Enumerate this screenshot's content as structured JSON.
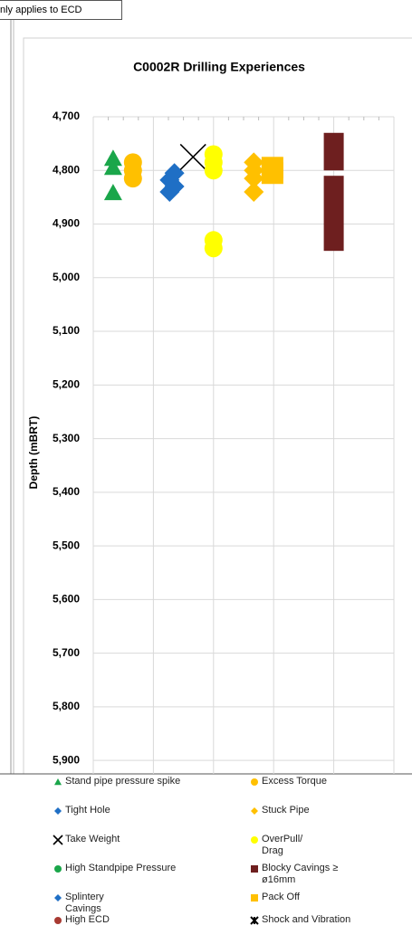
{
  "note": "nly applies to ECD",
  "chart_data": {
    "type": "scatter",
    "title": "C0002R Drilling Experiences",
    "y_label": "Depth (mBRT)",
    "ylim": [
      4700,
      5925
    ],
    "y_inverted": true,
    "yticks": [
      {
        "value": 4700,
        "label": "4,700"
      },
      {
        "value": 4800,
        "label": "4,800"
      },
      {
        "value": 4900,
        "label": "4,900"
      },
      {
        "value": 5000,
        "label": "5,000"
      },
      {
        "value": 5100,
        "label": "5,100"
      },
      {
        "value": 5200,
        "label": "5,200"
      },
      {
        "value": 5300,
        "label": "5,300"
      },
      {
        "value": 5400,
        "label": "5,400"
      },
      {
        "value": 5500,
        "label": "5,500"
      },
      {
        "value": 5600,
        "label": "5,600"
      },
      {
        "value": 5700,
        "label": "5,700"
      },
      {
        "value": 5800,
        "label": "5,800"
      },
      {
        "value": 5900,
        "label": "5,900"
      }
    ],
    "xlim": [
      0,
      5
    ],
    "xticks": [
      0,
      1,
      2,
      3,
      4,
      5
    ],
    "grid": true,
    "legend": "bottom",
    "series": [
      {
        "name": "Stand pipe pressure spike",
        "marker": "triangle",
        "color": "#1aa64a",
        "x": [
          0.33,
          0.33,
          0.33
        ],
        "y": [
          4778,
          4795,
          4842
        ]
      },
      {
        "name": "Excess Torque",
        "marker": "circle",
        "color": "#ffc000",
        "x": [
          0.66,
          0.66,
          0.66
        ],
        "y": [
          4785,
          4800,
          4815
        ]
      },
      {
        "name": "Tight Hole",
        "marker": "diamond",
        "color": "#1f6fc5",
        "x": [
          1.35,
          1.27,
          1.35,
          1.27
        ],
        "y": [
          4805,
          4818,
          4830,
          4840
        ]
      },
      {
        "name": "Stuck Pipe",
        "marker": "diamond",
        "color": "#ffc000",
        "x": [
          2.67,
          2.67,
          2.67,
          2.67
        ],
        "y": [
          4785,
          4800,
          4815,
          4840
        ]
      },
      {
        "name": "Take Weight",
        "marker": "x",
        "color": "#000000",
        "x": [
          1.66
        ],
        "y": [
          4775
        ]
      },
      {
        "name": "OverPull/ Drag",
        "marker": "circle",
        "color": "#ffff00",
        "x": [
          2,
          2,
          2,
          2,
          2
        ],
        "y": [
          4770,
          4785,
          4800,
          4930,
          4945
        ]
      },
      {
        "name": "High Standpipe Pressure",
        "marker": "circle",
        "color": "#1aa64a",
        "x": [],
        "y": []
      },
      {
        "name": "Blocky Cavings ≥ ø16mm",
        "marker": "range",
        "color": "#6e1f1f",
        "x": [
          4,
          4
        ],
        "y_top": [
          4730,
          4810
        ],
        "y_bottom": [
          4800,
          4950
        ]
      },
      {
        "name": "Splintery Cavings",
        "marker": "diamond",
        "color": "#1f6fc5",
        "x": [],
        "y": []
      },
      {
        "name": "Pack Off",
        "marker": "square",
        "color": "#ffc000",
        "x": [
          2.98,
          2.98
        ],
        "y": [
          4795,
          4805
        ]
      },
      {
        "name": "High ECD",
        "marker": "circle",
        "color": "#a83a32",
        "x": [],
        "y": []
      },
      {
        "name": "Shock and Vibration",
        "marker": "star",
        "color": "#000000",
        "x": [],
        "y": []
      }
    ]
  }
}
